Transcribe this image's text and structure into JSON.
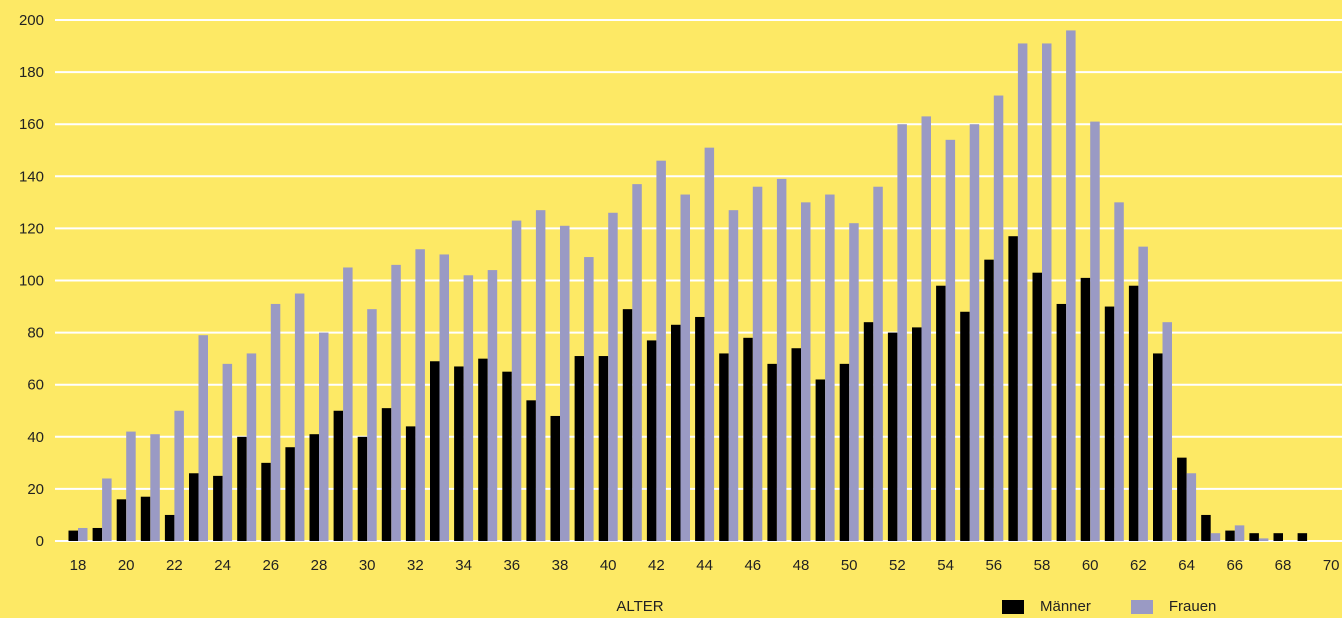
{
  "chart_data": {
    "type": "bar",
    "xlabel": "ALTER",
    "ylabel": "",
    "ylim": [
      0,
      200
    ],
    "xlim": [
      17.5,
      70
    ],
    "yticks": [
      0,
      20,
      40,
      60,
      80,
      100,
      120,
      140,
      160,
      180,
      200
    ],
    "xticks": [
      18,
      20,
      22,
      24,
      26,
      28,
      30,
      32,
      34,
      36,
      38,
      40,
      42,
      44,
      46,
      48,
      50,
      52,
      54,
      56,
      58,
      60,
      62,
      64,
      66,
      68,
      70
    ],
    "grid": true,
    "legend_position": "bottom-right",
    "categories": [
      18,
      19,
      20,
      21,
      22,
      23,
      24,
      25,
      26,
      27,
      28,
      29,
      30,
      31,
      32,
      33,
      34,
      35,
      36,
      37,
      38,
      39,
      40,
      41,
      42,
      43,
      44,
      45,
      46,
      47,
      48,
      49,
      50,
      51,
      52,
      53,
      54,
      55,
      56,
      57,
      58,
      59,
      60,
      61,
      62,
      63,
      64,
      65,
      66,
      67,
      68,
      69
    ],
    "series": [
      {
        "name": "Männer",
        "color": "#000000",
        "values": [
          4,
          5,
          16,
          17,
          10,
          26,
          25,
          40,
          30,
          36,
          41,
          50,
          40,
          51,
          44,
          69,
          67,
          70,
          65,
          54,
          48,
          71,
          71,
          89,
          77,
          83,
          86,
          72,
          78,
          68,
          74,
          62,
          68,
          84,
          80,
          82,
          98,
          88,
          108,
          117,
          103,
          91,
          101,
          90,
          98,
          72,
          32,
          10,
          4,
          3,
          3,
          3
        ]
      },
      {
        "name": "Frauen",
        "color": "#9a9ac4",
        "values": [
          5,
          24,
          42,
          41,
          50,
          79,
          68,
          72,
          91,
          95,
          80,
          105,
          89,
          106,
          112,
          110,
          102,
          104,
          123,
          127,
          121,
          109,
          126,
          137,
          146,
          133,
          151,
          127,
          136,
          139,
          130,
          133,
          122,
          136,
          160,
          163,
          154,
          160,
          171,
          191,
          191,
          196,
          161,
          130,
          113,
          84,
          26,
          3,
          6,
          1,
          0,
          0
        ]
      }
    ]
  }
}
